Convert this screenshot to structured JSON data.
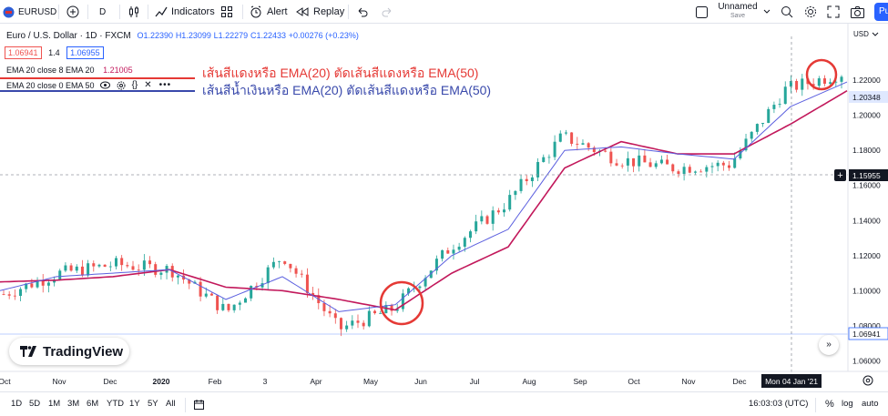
{
  "toolbar": {
    "symbol": "EURUSD",
    "interval": "D",
    "indicators_label": "Indicators",
    "alert_label": "Alert",
    "replay_label": "Replay",
    "layout_name": "Unnamed",
    "layout_status": "Save",
    "publish_label": "Pu"
  },
  "legend": {
    "title": "Euro / U.S. Dollar · 1D · FXCM",
    "open": "O1.22390",
    "high": "H1.23099",
    "low": "L1.22279",
    "close": "C1.22433",
    "change": "+0.00276 (+0.23%)",
    "sell_price": "1.06941",
    "spread": "1.4",
    "buy_price": "1.06955",
    "ema1_label": "EMA 20 close 8 EMA 20",
    "ema1_value": "1.21005",
    "ema2_label": "EMA 20 close 0 EMA 50"
  },
  "annotations": {
    "line1": "เส้นสีแดงหรือ EMA(20) ตัดเส้นสีแดงหรือ EMA(50)",
    "line2": "เส้นสีน้ำเงินหรือ EMA(20) ตัดเส้นสีแดงหรือ EMA(50)"
  },
  "price_axis": {
    "currency": "USD",
    "ticks": [
      "1.22000",
      "1.20000",
      "1.18000",
      "1.16000",
      "1.14000",
      "1.12000",
      "1.10000",
      "1.08000",
      "1.06000"
    ],
    "last_price": "1.20348",
    "crosshair_price": "1.15955",
    "low_line_price": "1.06941"
  },
  "time_axis": {
    "ticks": [
      "Oct",
      "Nov",
      "Dec",
      "2020",
      "Feb",
      "3",
      "Apr",
      "May",
      "Jun",
      "Jul",
      "Aug",
      "Sep",
      "Oct",
      "Nov",
      "Dec"
    ],
    "crosshair_date": "Mon 04 Jan '21"
  },
  "bottombar": {
    "ranges": [
      "1D",
      "5D",
      "1M",
      "3M",
      "6M",
      "YTD",
      "1Y",
      "5Y",
      "All"
    ],
    "clock": "16:03:03 (UTC)",
    "percent_label": "%",
    "log_label": "log",
    "auto_label": "auto"
  },
  "logo_text": "TradingView",
  "colors": {
    "candle_up": "#26a69a",
    "candle_down": "#ef5350",
    "ema20": "#5b5fdf",
    "ema50": "#c2185b",
    "annot_red": "#e53935",
    "annot_blue": "#3949ab",
    "circle": "#e53935"
  },
  "chart_data": {
    "type": "line",
    "symbol": "EURUSD",
    "timeframe": "1D",
    "ylim": [
      1.055,
      1.245
    ],
    "x": [
      "2019-10",
      "2019-11",
      "2019-12",
      "2020-01",
      "2020-02",
      "2020-03",
      "2020-04",
      "2020-05",
      "2020-06",
      "2020-07",
      "2020-08",
      "2020-09",
      "2020-10",
      "2020-11",
      "2020-12",
      "2021-01"
    ],
    "series": [
      {
        "name": "EMA 20",
        "values": [
          1.1,
          1.108,
          1.11,
          1.112,
          1.095,
          1.108,
          1.088,
          1.092,
          1.12,
          1.135,
          1.18,
          1.182,
          1.178,
          1.175,
          1.205,
          1.219
        ]
      },
      {
        "name": "EMA 50",
        "values": [
          1.105,
          1.106,
          1.108,
          1.112,
          1.102,
          1.1,
          1.095,
          1.089,
          1.11,
          1.125,
          1.17,
          1.185,
          1.178,
          1.178,
          1.195,
          1.214
        ]
      }
    ],
    "price": [
      1.098,
      1.11,
      1.115,
      1.112,
      1.088,
      1.12,
      1.078,
      1.09,
      1.125,
      1.15,
      1.188,
      1.175,
      1.17,
      1.172,
      1.215,
      1.224
    ]
  }
}
